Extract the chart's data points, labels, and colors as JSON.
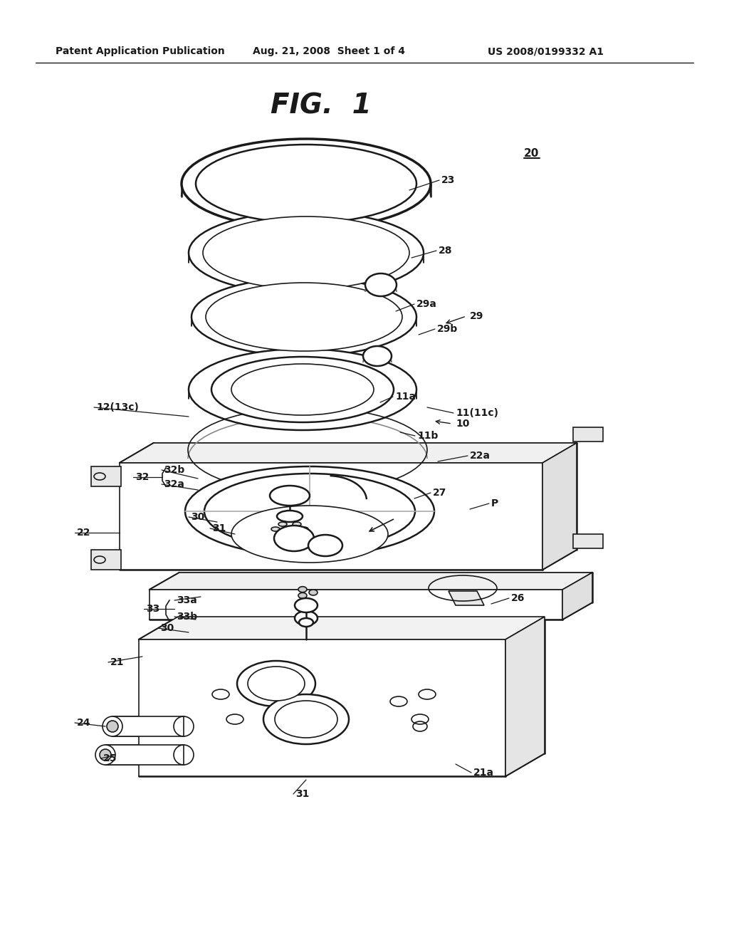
{
  "bg_color": "#ffffff",
  "line_color": "#1a1a1a",
  "header_left": "Patent Application Publication",
  "header_mid": "Aug. 21, 2008  Sheet 1 of 4",
  "header_right": "US 2008/0199332 A1",
  "figure_title": "FIG.  1"
}
